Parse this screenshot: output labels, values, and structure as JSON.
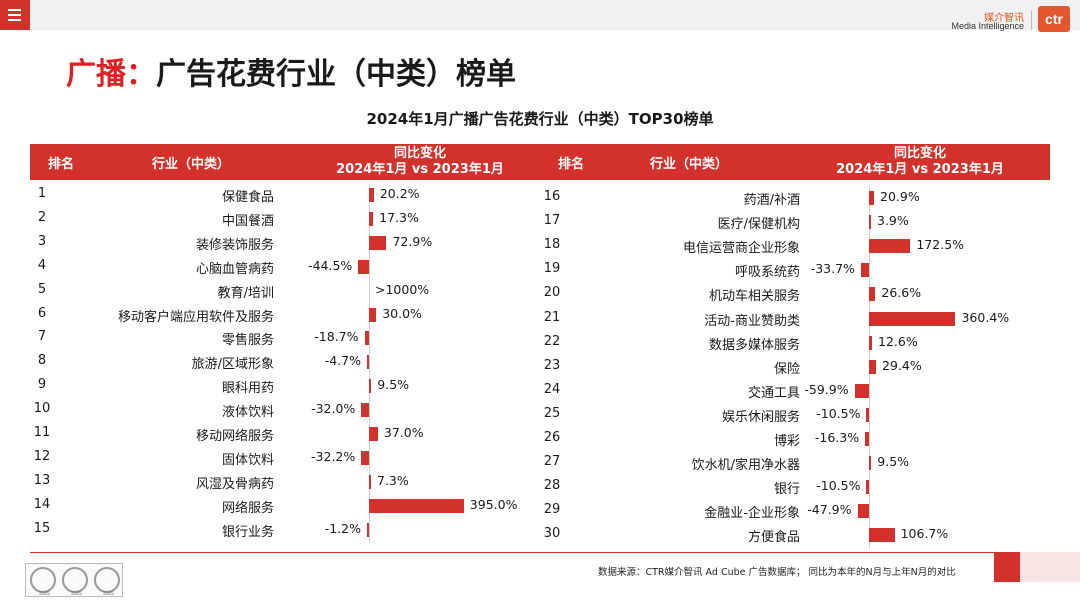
{
  "header": {
    "menu_icon": "hamburger-icon",
    "brand_cn": "媒介智讯",
    "brand_en": "Media Intelligence",
    "logo_text": "ctr",
    "accent_color": "#d3312b"
  },
  "page": {
    "title_prefix": "广播：",
    "title_main": "广告花费行业（中类）榜单"
  },
  "chart_data": {
    "type": "bar",
    "title": "2024年1月广播广告花费行业（中类）TOP30榜单",
    "columns": {
      "rank": "排名",
      "industry": "行业（中类）",
      "change_line1": "同比变化",
      "change_line2": "2024年1月 vs 2023年1月"
    },
    "unit": "%",
    "rows": [
      {
        "rank": "1",
        "industry": "保健食品",
        "value": 20.2,
        "label": "20.2%"
      },
      {
        "rank": "2",
        "industry": "中国餐酒",
        "value": 17.3,
        "label": "17.3%"
      },
      {
        "rank": "3",
        "industry": "装修装饰服务",
        "value": 72.9,
        "label": "72.9%"
      },
      {
        "rank": "4",
        "industry": "心脑血管病药",
        "value": -44.5,
        "label": "-44.5%"
      },
      {
        "rank": "5",
        "industry": "教育/培训",
        "value": null,
        "label": ">1000%"
      },
      {
        "rank": "6",
        "industry": "移动客户端应用软件及服务",
        "value": 30.0,
        "label": "30.0%"
      },
      {
        "rank": "7",
        "industry": "零售服务",
        "value": -18.7,
        "label": "-18.7%"
      },
      {
        "rank": "8",
        "industry": "旅游/区域形象",
        "value": -4.7,
        "label": "-4.7%"
      },
      {
        "rank": "9",
        "industry": "眼科用药",
        "value": 9.5,
        "label": "9.5%"
      },
      {
        "rank": "10",
        "industry": "液体饮料",
        "value": -32.0,
        "label": "-32.0%"
      },
      {
        "rank": "11",
        "industry": "移动网络服务",
        "value": 37.0,
        "label": "37.0%"
      },
      {
        "rank": "12",
        "industry": "固体饮料",
        "value": -32.2,
        "label": "-32.2%"
      },
      {
        "rank": "13",
        "industry": "风湿及骨病药",
        "value": 7.3,
        "label": "7.3%"
      },
      {
        "rank": "14",
        "industry": "网络服务",
        "value": 395.0,
        "label": "395.0%"
      },
      {
        "rank": "15",
        "industry": "银行业务",
        "value": -1.2,
        "label": "-1.2%"
      },
      {
        "rank": "16",
        "industry": "药酒/补酒",
        "value": 20.9,
        "label": "20.9%"
      },
      {
        "rank": "17",
        "industry": "医疗/保健机构",
        "value": 3.9,
        "label": "3.9%"
      },
      {
        "rank": "18",
        "industry": "电信运营商企业形象",
        "value": 172.5,
        "label": "172.5%"
      },
      {
        "rank": "19",
        "industry": "呼吸系统药",
        "value": -33.7,
        "label": "-33.7%"
      },
      {
        "rank": "20",
        "industry": "机动车相关服务",
        "value": 26.6,
        "label": "26.6%"
      },
      {
        "rank": "21",
        "industry": "活动-商业赞助类",
        "value": 360.4,
        "label": "360.4%"
      },
      {
        "rank": "22",
        "industry": "数据多媒体服务",
        "value": 12.6,
        "label": "12.6%"
      },
      {
        "rank": "23",
        "industry": "保险",
        "value": 29.4,
        "label": "29.4%"
      },
      {
        "rank": "24",
        "industry": "交通工具",
        "value": -59.9,
        "label": "-59.9%"
      },
      {
        "rank": "25",
        "industry": "娱乐休闲服务",
        "value": -10.5,
        "label": "-10.5%"
      },
      {
        "rank": "26",
        "industry": "博彩",
        "value": -16.3,
        "label": "-16.3%"
      },
      {
        "rank": "27",
        "industry": "饮水机/家用净水器",
        "value": 9.5,
        "label": "9.5%"
      },
      {
        "rank": "28",
        "industry": "银行",
        "value": -10.5,
        "label": "-10.5%"
      },
      {
        "rank": "29",
        "industry": "金融业-企业形象",
        "value": -47.9,
        "label": "-47.9%"
      },
      {
        "rank": "30",
        "industry": "方便食品",
        "value": 106.7,
        "label": "106.7%"
      }
    ]
  },
  "footer": {
    "source": "数据来源：CTR媒介智讯 Ad Cube 广告数据库；  同比为本年的N月与上年N月的对比",
    "cert_badges": [
      "SGS",
      "SGS",
      "SGS"
    ]
  }
}
